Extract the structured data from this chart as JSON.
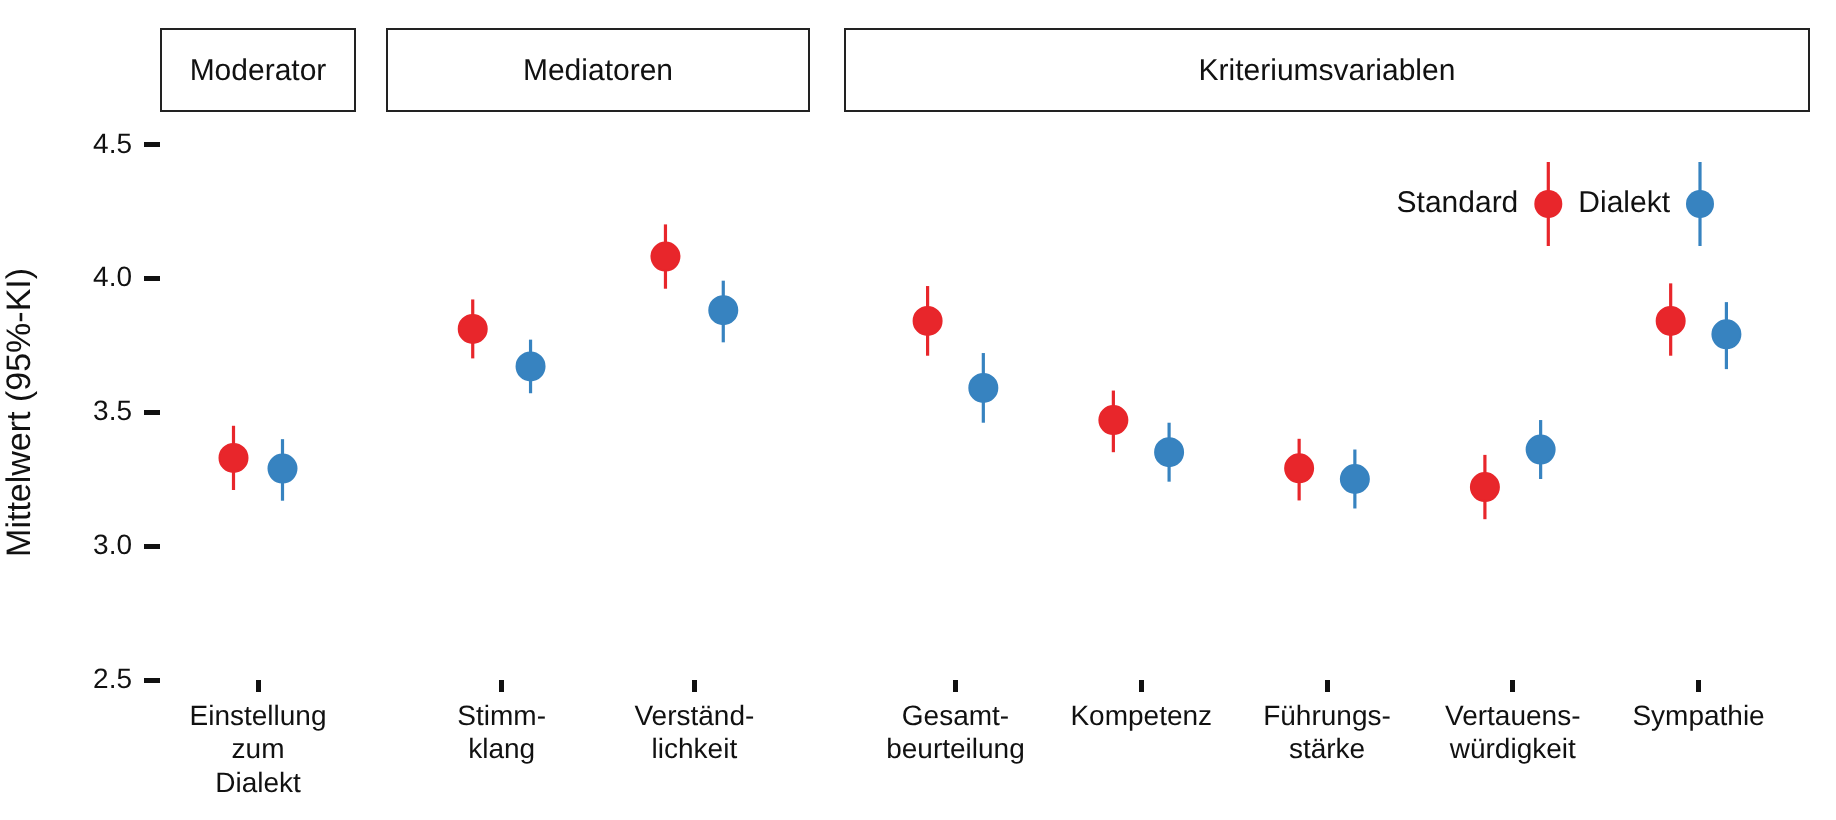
{
  "chart_data": [
    {
      "type": "scatter",
      "title": "Moderator",
      "ylabel": "Mittelwert (95%-KI)",
      "categories": [
        "Einstellung\nzum\nDialekt"
      ],
      "marker": "circle",
      "series": [
        {
          "color": "#e8262b",
          "values": [
            3.33
          ],
          "errors": [
            [
              3.21,
              3.45
            ]
          ]
        },
        {
          "color": "#3783c0",
          "values": [
            3.29
          ],
          "errors": [
            [
              3.17,
              3.4
            ]
          ]
        }
      ],
      "ylim": [
        2.5,
        4.5
      ],
      "yticks": [
        2.5,
        {
          "value": 3,
          "label": "3.0"
        },
        3.5,
        {
          "value": 4,
          "label": "4.0"
        },
        4.5
      ]
    },
    {
      "type": "scatter",
      "title": "Mediatoren",
      "categories": [
        "Stimm-\nklang",
        "Verständ-\nlichkeit"
      ],
      "marker": "circle",
      "tick_labels": "x",
      "series": [
        {
          "color": "#e8262b",
          "values": [
            3.81,
            4.08
          ],
          "errors": [
            [
              3.7,
              3.92
            ],
            [
              3.96,
              4.2
            ]
          ]
        },
        {
          "color": "#3783c0",
          "values": [
            3.67,
            3.88
          ],
          "errors": [
            [
              3.57,
              3.77
            ],
            [
              3.76,
              3.99
            ]
          ]
        }
      ],
      "ylim": [
        2.5,
        4.5
      ]
    },
    {
      "type": "scatter",
      "title": "Kriteriumsvariablen",
      "categories": [
        "Gesamt-\nbeurteilung",
        "Kompetenz",
        "Führungs-\nstärke",
        "Vertauens-\nwürdigkeit",
        "Sympathie"
      ],
      "marker": "circle",
      "legend": "top right",
      "tick_labels": "x",
      "series": [
        {
          "name": "Standard",
          "color": "#e8262b",
          "values": [
            3.84,
            3.47,
            3.29,
            3.22,
            3.84
          ],
          "errors": [
            [
              3.71,
              3.97
            ],
            [
              3.35,
              3.58
            ],
            [
              3.17,
              3.4
            ],
            [
              3.1,
              3.34
            ],
            [
              3.71,
              3.98
            ]
          ]
        },
        {
          "name": "Dialekt",
          "color": "#3783c0",
          "values": [
            3.59,
            3.35,
            3.25,
            3.36,
            3.79
          ],
          "errors": [
            [
              3.46,
              3.72
            ],
            [
              3.24,
              3.46
            ],
            [
              3.14,
              3.36
            ],
            [
              3.25,
              3.47
            ],
            [
              3.66,
              3.91
            ]
          ]
        }
      ],
      "ylim": [
        2.5,
        4.5
      ]
    }
  ]
}
